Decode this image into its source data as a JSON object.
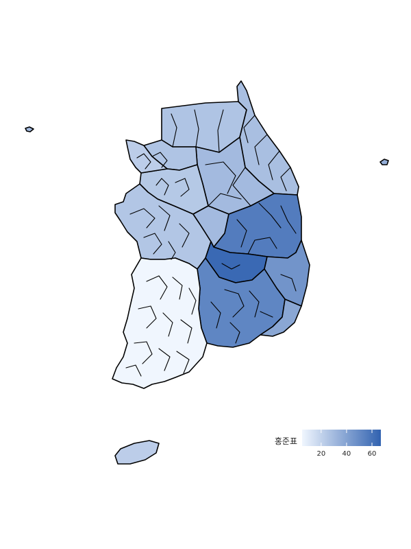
{
  "legend": {
    "title": "홍준표",
    "min": 5,
    "max": 67,
    "ticks": [
      20,
      40,
      60
    ],
    "colors": [
      "#f0f6fe",
      "#3162b0"
    ]
  },
  "regions": [
    {
      "name": "gangwon-north",
      "value": 26
    },
    {
      "name": "gangwon-coast",
      "value": 28
    },
    {
      "name": "gangwon-south",
      "value": 30
    },
    {
      "name": "gyeonggi-north",
      "value": 26
    },
    {
      "name": "gyeonggi-south",
      "value": 24
    },
    {
      "name": "seoul-incheon",
      "value": 22
    },
    {
      "name": "chungcheong",
      "value": 25
    },
    {
      "name": "chungbuk-east",
      "value": 30
    },
    {
      "name": "gyeongbuk-north",
      "value": 56
    },
    {
      "name": "gyeongbuk-core",
      "value": 64
    },
    {
      "name": "gyeongbuk-coast",
      "value": 46
    },
    {
      "name": "gyeongnam",
      "value": 52
    },
    {
      "name": "gyeongnam-coast",
      "value": 38
    },
    {
      "name": "honam",
      "value": 5
    },
    {
      "name": "jeju",
      "value": 22
    },
    {
      "name": "ulleung",
      "value": 35
    },
    {
      "name": "west-islet",
      "value": 30
    }
  ]
}
